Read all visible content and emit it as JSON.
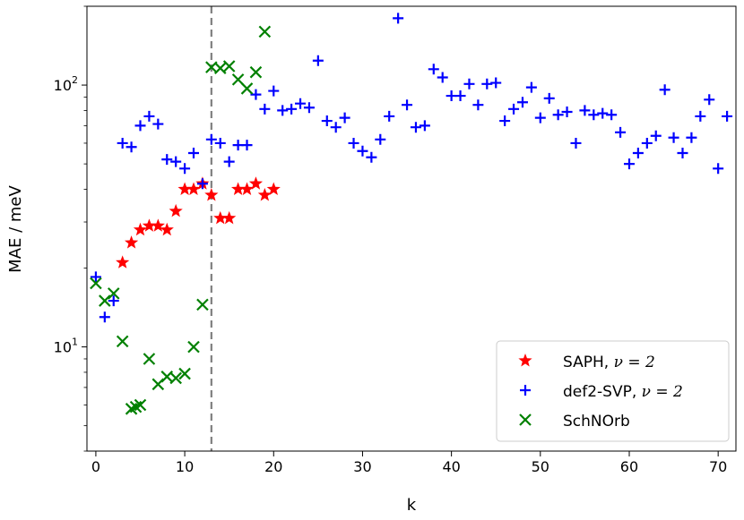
{
  "chart_data": {
    "type": "scatter",
    "title": "",
    "xlabel": "k",
    "ylabel": "MAE / meV",
    "xlim": [
      -1,
      72
    ],
    "ylim": [
      4,
      200
    ],
    "yscale": "log",
    "grid": false,
    "legend_position": "lower-right",
    "x_ticks": [
      0,
      10,
      20,
      30,
      40,
      50,
      60,
      70
    ],
    "x_tick_labels": [
      "0",
      "10",
      "20",
      "30",
      "40",
      "50",
      "60",
      "70"
    ],
    "y_ticks": [
      10,
      100
    ],
    "y_tick_labels": [
      {
        "base": "10",
        "exp": "1"
      },
      {
        "base": "10",
        "exp": "2"
      }
    ],
    "vline": {
      "x": 13,
      "color": "#808080",
      "style": "dashed"
    },
    "series": [
      {
        "name": "SAPH, ν = 2",
        "legend_main": "SAPH, ",
        "legend_math": "ν = 2",
        "marker": "star",
        "color": "#ff0000",
        "x": [
          3,
          4,
          5,
          6,
          7,
          8,
          9,
          10,
          11,
          12,
          13,
          14,
          15,
          16,
          17,
          18,
          19,
          20
        ],
        "y": [
          21,
          25,
          28,
          29,
          29,
          28,
          33,
          40,
          40,
          42,
          38,
          31,
          31,
          40,
          40,
          42,
          38,
          40
        ]
      },
      {
        "name": "def2-SVP, ν = 2",
        "legend_main": "def2-SVP, ",
        "legend_math": "ν = 2",
        "marker": "plus",
        "color": "#0000ff",
        "x": [
          0,
          1,
          2,
          3,
          4,
          5,
          6,
          7,
          8,
          9,
          10,
          11,
          12,
          13,
          14,
          15,
          16,
          17,
          18,
          19,
          20,
          21,
          22,
          23,
          24,
          25,
          26,
          27,
          28,
          29,
          30,
          31,
          32,
          33,
          34,
          35,
          36,
          37,
          38,
          39,
          40,
          41,
          42,
          43,
          44,
          45,
          46,
          47,
          48,
          49,
          50,
          51,
          52,
          53,
          54,
          55,
          56,
          57,
          58,
          59,
          60,
          61,
          62,
          63,
          64,
          65,
          66,
          67,
          68,
          69,
          70,
          71
        ],
        "y": [
          18.5,
          13,
          15,
          60,
          58,
          70,
          76,
          71,
          52,
          51,
          48,
          55,
          42,
          62,
          60,
          51,
          59,
          59,
          92,
          81,
          95,
          80,
          81,
          85,
          82,
          124,
          73,
          69,
          75,
          60,
          56,
          53,
          62,
          76,
          180,
          84,
          69,
          70,
          115,
          107,
          91,
          91,
          101,
          84,
          101,
          102,
          73,
          81,
          86,
          98,
          75,
          89,
          77,
          79,
          60,
          80,
          77,
          78,
          77,
          66,
          50,
          55,
          60,
          64,
          96,
          63,
          55,
          63,
          76,
          88,
          48,
          76
        ]
      },
      {
        "name": "SchNOrb",
        "legend_main": "SchNOrb",
        "legend_math": "",
        "marker": "x",
        "color": "#008000",
        "x": [
          0,
          1,
          2,
          3,
          4,
          4.5,
          5,
          6,
          7,
          8,
          9,
          10,
          11,
          12,
          13,
          14,
          15,
          16,
          17,
          18,
          19
        ],
        "y": [
          17.5,
          15,
          16,
          10.5,
          5.8,
          5.9,
          6,
          9,
          7.2,
          7.7,
          7.6,
          7.9,
          10,
          14.5,
          117,
          116,
          118,
          105,
          97,
          112,
          160
        ]
      }
    ]
  }
}
